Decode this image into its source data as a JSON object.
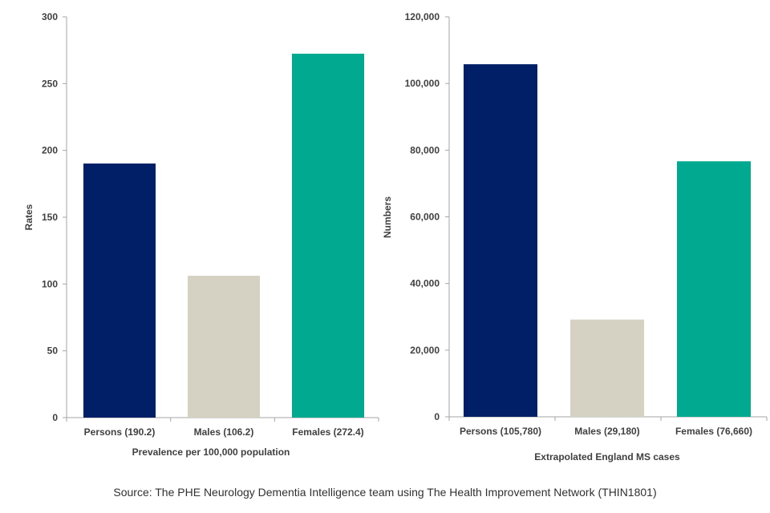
{
  "chart_data": [
    {
      "type": "bar",
      "categories": [
        "Persons (190.2)",
        "Males (106.2)",
        "Females (272.4)"
      ],
      "values": [
        190.2,
        106.2,
        272.4
      ],
      "colors": [
        "#001f66",
        "#d5d2c3",
        "#00a98f"
      ],
      "xlabel": "Prevalence per 100,000 population",
      "ylabel": "Rates",
      "ylim": [
        0,
        300
      ],
      "yticks": [
        "0",
        "50",
        "100",
        "150",
        "200",
        "250",
        "300"
      ],
      "grid": false
    },
    {
      "type": "bar",
      "categories": [
        "Persons (105,780)",
        "Males (29,180)",
        "Females (76,660)"
      ],
      "values": [
        105780,
        29180,
        76660
      ],
      "colors": [
        "#001f66",
        "#d5d2c3",
        "#00a98f"
      ],
      "xlabel": "Extrapolated England MS cases",
      "ylabel": "Numbers",
      "ylim": [
        0,
        120000
      ],
      "yticks": [
        "0",
        "20,000",
        "40,000",
        "60,000",
        "80,000",
        "100,000",
        "120,000"
      ],
      "grid": false
    }
  ],
  "source": "Source: The PHE Neurology Dementia Intelligence  team using The Health Improvement  Network (THIN1801)"
}
